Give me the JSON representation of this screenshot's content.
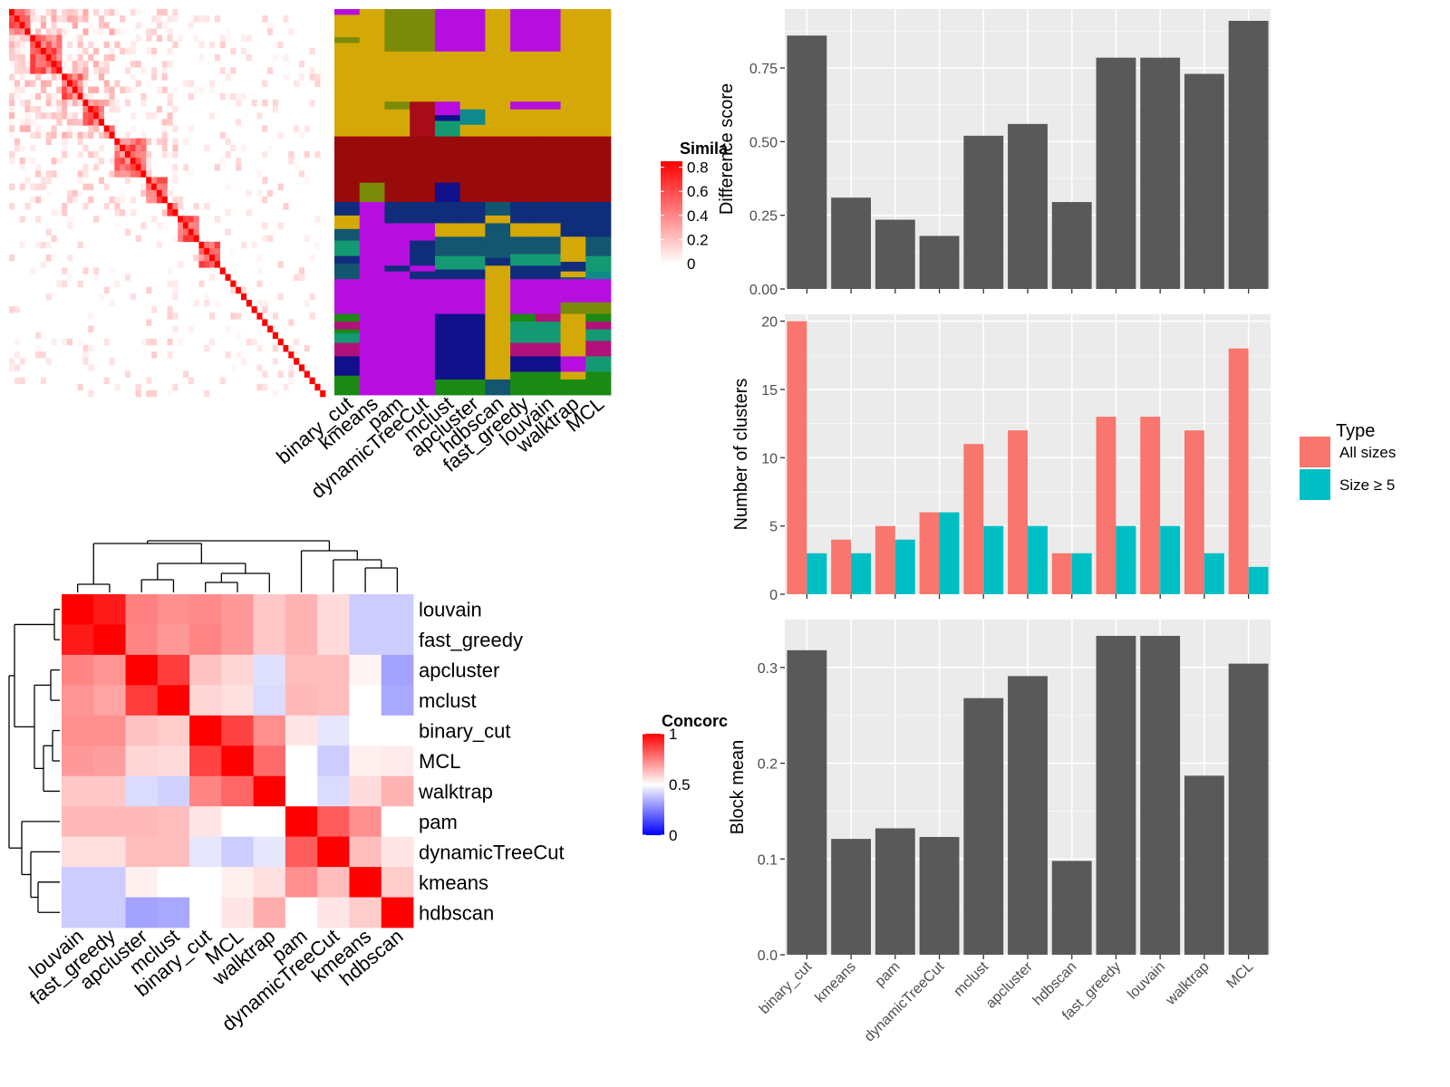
{
  "chart_data": [
    {
      "type": "heatmap",
      "panel": "similarity-heatmap",
      "legend": {
        "title": "Simila",
        "ticks": [
          "0.8",
          "0.6",
          "0.4",
          "0.2",
          "0"
        ],
        "range": [
          0,
          0.85
        ],
        "colors": [
          "#ffffff",
          "#ff0000"
        ]
      },
      "methods": [
        "binary_cut",
        "kmeans",
        "pam",
        "dynamicTreeCut",
        "mclust",
        "apcluster",
        "hdbscan",
        "fast_greedy",
        "louvain",
        "walktrap",
        "MCL"
      ],
      "palette": {
        "gold": "#d4a806",
        "darkred": "#990a0a",
        "red2": "#a80c18",
        "purple": "#b70ee0",
        "olive": "#7a8b0a",
        "navy": "#0f2d7a",
        "blue": "#10108a",
        "teal": "#13566f",
        "green": "#149a72",
        "cyan": "#0f8a8a",
        "ygreen": "#1a8a14",
        "magenta": "#b0127a",
        "white": "#ffffff"
      },
      "cluster_blocks": [
        {
          "col": 0,
          "segments": [
            [
              "purple",
              0,
              0.015
            ],
            [
              "gold",
              0.015,
              0.073
            ],
            [
              "olive",
              0.073,
              0.088
            ],
            [
              "gold",
              0.088,
              0.33
            ],
            [
              "darkred",
              0.33,
              0.5
            ],
            [
              "navy",
              0.5,
              0.535
            ],
            [
              "gold",
              0.535,
              0.57
            ],
            [
              "teal",
              0.57,
              0.6
            ],
            [
              "green",
              0.6,
              0.64
            ],
            [
              "navy",
              0.64,
              0.66
            ],
            [
              "teal",
              0.66,
              0.7
            ],
            [
              "purple",
              0.7,
              0.79
            ],
            [
              "ygreen",
              0.79,
              0.81
            ],
            [
              "magenta",
              0.81,
              0.83
            ],
            [
              "ygreen",
              0.83,
              0.84
            ],
            [
              "green",
              0.84,
              0.865
            ],
            [
              "magenta",
              0.865,
              0.9
            ],
            [
              "blue",
              0.9,
              0.95
            ],
            [
              "ygreen",
              0.95,
              1
            ]
          ]
        },
        {
          "col": 1,
          "segments": [
            [
              "gold",
              0,
              0.33
            ],
            [
              "darkred",
              0.33,
              0.45
            ],
            [
              "olive",
              0.45,
              0.5
            ],
            [
              "purple",
              0.5,
              1
            ]
          ]
        },
        {
          "col": 2,
          "segments": [
            [
              "olive",
              0,
              0.11
            ],
            [
              "gold",
              0.11,
              0.24
            ],
            [
              "olive",
              0.24,
              0.26
            ],
            [
              "gold",
              0.26,
              0.33
            ],
            [
              "darkred",
              0.33,
              0.5
            ],
            [
              "navy",
              0.5,
              0.555
            ],
            [
              "purple",
              0.555,
              0.665
            ],
            [
              "navy",
              0.665,
              0.68
            ],
            [
              "purple",
              0.68,
              1
            ]
          ]
        },
        {
          "col": 3,
          "segments": [
            [
              "olive",
              0,
              0.11
            ],
            [
              "gold",
              0.11,
              0.24
            ],
            [
              "red2",
              0.24,
              0.33
            ],
            [
              "darkred",
              0.33,
              0.5
            ],
            [
              "navy",
              0.5,
              0.555
            ],
            [
              "purple",
              0.555,
              0.6
            ],
            [
              "navy",
              0.6,
              0.665
            ],
            [
              "purple",
              0.665,
              0.68
            ],
            [
              "navy",
              0.68,
              0.7
            ],
            [
              "purple",
              0.7,
              1
            ]
          ]
        },
        {
          "col": 4,
          "segments": [
            [
              "purple",
              0,
              0.11
            ],
            [
              "gold",
              0.11,
              0.24
            ],
            [
              "purple",
              0.24,
              0.275
            ],
            [
              "blue",
              0.275,
              0.29
            ],
            [
              "green",
              0.29,
              0.33
            ],
            [
              "darkred",
              0.33,
              0.45
            ],
            [
              "blue",
              0.45,
              0.5
            ],
            [
              "navy",
              0.5,
              0.555
            ],
            [
              "gold",
              0.555,
              0.59
            ],
            [
              "teal",
              0.59,
              0.64
            ],
            [
              "green",
              0.64,
              0.675
            ],
            [
              "navy",
              0.675,
              0.7
            ],
            [
              "purple",
              0.7,
              0.79
            ],
            [
              "blue",
              0.79,
              0.96
            ],
            [
              "ygreen",
              0.96,
              1
            ]
          ]
        },
        {
          "col": 5,
          "segments": [
            [
              "purple",
              0,
              0.11
            ],
            [
              "gold",
              0.11,
              0.26
            ],
            [
              "cyan",
              0.26,
              0.3
            ],
            [
              "gold",
              0.3,
              0.33
            ],
            [
              "darkred",
              0.33,
              0.5
            ],
            [
              "navy",
              0.5,
              0.555
            ],
            [
              "gold",
              0.555,
              0.59
            ],
            [
              "teal",
              0.59,
              0.64
            ],
            [
              "green",
              0.64,
              0.675
            ],
            [
              "navy",
              0.675,
              0.7
            ],
            [
              "purple",
              0.7,
              0.79
            ],
            [
              "blue",
              0.79,
              0.96
            ],
            [
              "ygreen",
              0.96,
              1
            ]
          ]
        },
        {
          "col": 6,
          "segments": [
            [
              "gold",
              0,
              0.33
            ],
            [
              "darkred",
              0.33,
              0.5
            ],
            [
              "teal",
              0.5,
              0.535
            ],
            [
              "gold",
              0.535,
              0.555
            ],
            [
              "teal",
              0.555,
              0.645
            ],
            [
              "navy",
              0.645,
              0.665
            ],
            [
              "gold",
              0.665,
              0.96
            ],
            [
              "teal",
              0.96,
              1
            ]
          ]
        },
        {
          "col": 7,
          "segments": [
            [
              "purple",
              0,
              0.11
            ],
            [
              "gold",
              0.11,
              0.24
            ],
            [
              "purple",
              0.24,
              0.26
            ],
            [
              "gold",
              0.26,
              0.33
            ],
            [
              "darkred",
              0.33,
              0.5
            ],
            [
              "navy",
              0.5,
              0.555
            ],
            [
              "gold",
              0.555,
              0.59
            ],
            [
              "teal",
              0.59,
              0.635
            ],
            [
              "green",
              0.635,
              0.665
            ],
            [
              "navy",
              0.665,
              0.7
            ],
            [
              "purple",
              0.7,
              0.79
            ],
            [
              "ygreen",
              0.79,
              0.81
            ],
            [
              "green",
              0.81,
              0.865
            ],
            [
              "magenta",
              0.865,
              0.9
            ],
            [
              "blue",
              0.9,
              0.94
            ],
            [
              "ygreen",
              0.94,
              1
            ]
          ]
        },
        {
          "col": 8,
          "segments": [
            [
              "purple",
              0,
              0.11
            ],
            [
              "gold",
              0.11,
              0.24
            ],
            [
              "purple",
              0.24,
              0.26
            ],
            [
              "gold",
              0.26,
              0.33
            ],
            [
              "darkred",
              0.33,
              0.5
            ],
            [
              "navy",
              0.5,
              0.555
            ],
            [
              "gold",
              0.555,
              0.59
            ],
            [
              "teal",
              0.59,
              0.635
            ],
            [
              "green",
              0.635,
              0.665
            ],
            [
              "navy",
              0.665,
              0.7
            ],
            [
              "purple",
              0.7,
              0.79
            ],
            [
              "magenta",
              0.79,
              0.81
            ],
            [
              "green",
              0.81,
              0.865
            ],
            [
              "magenta",
              0.865,
              0.9
            ],
            [
              "blue",
              0.9,
              0.94
            ],
            [
              "ygreen",
              0.94,
              1
            ]
          ]
        },
        {
          "col": 9,
          "segments": [
            [
              "gold",
              0,
              0.33
            ],
            [
              "darkred",
              0.33,
              0.5
            ],
            [
              "navy",
              0.5,
              0.59
            ],
            [
              "gold",
              0.59,
              0.655
            ],
            [
              "navy",
              0.655,
              0.68
            ],
            [
              "gold",
              0.68,
              0.695
            ],
            [
              "teal",
              0.695,
              0.7
            ],
            [
              "purple",
              0.7,
              0.76
            ],
            [
              "olive",
              0.76,
              0.79
            ],
            [
              "gold",
              0.79,
              0.9
            ],
            [
              "purple",
              0.9,
              0.94
            ],
            [
              "gold",
              0.94,
              0.96
            ],
            [
              "ygreen",
              0.96,
              1
            ]
          ]
        },
        {
          "col": 10,
          "segments": [
            [
              "gold",
              0,
              0.33
            ],
            [
              "darkred",
              0.33,
              0.5
            ],
            [
              "navy",
              0.5,
              0.59
            ],
            [
              "teal",
              0.59,
              0.64
            ],
            [
              "green",
              0.64,
              0.68
            ],
            [
              "cyan",
              0.68,
              0.7
            ],
            [
              "purple",
              0.7,
              0.76
            ],
            [
              "olive",
              0.76,
              0.79
            ],
            [
              "ygreen",
              0.79,
              0.81
            ],
            [
              "magenta",
              0.81,
              0.83
            ],
            [
              "green",
              0.83,
              0.86
            ],
            [
              "magenta",
              0.86,
              0.9
            ],
            [
              "green",
              0.9,
              0.94
            ],
            [
              "ygreen",
              0.94,
              1
            ]
          ]
        }
      ]
    },
    {
      "type": "heatmap",
      "panel": "concordance-heatmap",
      "legend": {
        "title": "Concorc",
        "ticks": [
          "1",
          "0.5",
          "0"
        ],
        "range": [
          0,
          1
        ],
        "colors": [
          "#0000ff",
          "#ffffff",
          "#ff0000"
        ]
      },
      "rows": [
        "louvain",
        "fast_greedy",
        "apcluster",
        "mclust",
        "binary_cut",
        "MCL",
        "walktrap",
        "pam",
        "dynamicTreeCut",
        "kmeans",
        "hdbscan"
      ],
      "cols": [
        "louvain",
        "fast_greedy",
        "apcluster",
        "mclust",
        "binary_cut",
        "MCL",
        "walktrap",
        "pam",
        "dynamicTreeCut",
        "kmeans",
        "hdbscan"
      ],
      "values": [
        [
          1,
          0.95,
          0.75,
          0.72,
          0.73,
          0.7,
          0.61,
          0.65,
          0.57,
          0.4,
          0.4
        ],
        [
          0.95,
          1,
          0.74,
          0.7,
          0.74,
          0.7,
          0.61,
          0.65,
          0.57,
          0.4,
          0.4
        ],
        [
          0.74,
          0.71,
          1,
          0.88,
          0.62,
          0.58,
          0.44,
          0.63,
          0.63,
          0.52,
          0.32
        ],
        [
          0.71,
          0.68,
          0.88,
          1,
          0.58,
          0.56,
          0.43,
          0.64,
          0.63,
          0.5,
          0.33
        ],
        [
          0.72,
          0.72,
          0.62,
          0.6,
          1,
          0.87,
          0.72,
          0.55,
          0.45,
          0.5,
          0.5
        ],
        [
          0.7,
          0.69,
          0.58,
          0.57,
          0.87,
          1,
          0.79,
          0.5,
          0.4,
          0.53,
          0.54
        ],
        [
          0.61,
          0.61,
          0.43,
          0.41,
          0.74,
          0.8,
          1,
          0.5,
          0.43,
          0.57,
          0.65
        ],
        [
          0.64,
          0.64,
          0.64,
          0.63,
          0.55,
          0.5,
          0.5,
          1,
          0.82,
          0.72,
          0.5
        ],
        [
          0.56,
          0.56,
          0.63,
          0.63,
          0.45,
          0.4,
          0.45,
          0.82,
          1,
          0.63,
          0.55
        ],
        [
          0.4,
          0.4,
          0.53,
          0.5,
          0.5,
          0.53,
          0.56,
          0.72,
          0.63,
          1,
          0.6
        ],
        [
          0.4,
          0.4,
          0.32,
          0.33,
          0.5,
          0.55,
          0.66,
          0.5,
          0.55,
          0.6,
          1
        ]
      ]
    },
    {
      "type": "bar",
      "panel": "difference-score",
      "categories": [
        "binary_cut",
        "kmeans",
        "pam",
        "dynamicTreeCut",
        "mclust",
        "apcluster",
        "hdbscan",
        "fast_greedy",
        "louvain",
        "walktrap",
        "MCL"
      ],
      "values": [
        0.86,
        0.31,
        0.235,
        0.18,
        0.52,
        0.56,
        0.295,
        0.785,
        0.785,
        0.73,
        0.91
      ],
      "ylabel": "Difference score",
      "ylim": [
        0,
        0.95
      ],
      "yticks": [
        "0.00",
        "0.25",
        "0.50",
        "0.75"
      ],
      "bar_color": "#595959",
      "grid": true
    },
    {
      "type": "bar",
      "panel": "number-of-clusters",
      "categories": [
        "binary_cut",
        "kmeans",
        "pam",
        "dynamicTreeCut",
        "mclust",
        "apcluster",
        "hdbscan",
        "fast_greedy",
        "louvain",
        "walktrap",
        "MCL"
      ],
      "series": [
        {
          "name": "All sizes",
          "color": "#f8766d",
          "values": [
            20,
            4,
            5,
            6,
            11,
            12,
            3,
            13,
            13,
            12,
            18
          ]
        },
        {
          "name": "Size ≥ 5",
          "color": "#00bfc4",
          "values": [
            3,
            3,
            4,
            6,
            5,
            5,
            3,
            5,
            5,
            3,
            2
          ]
        }
      ],
      "ylabel": "Number of clusters",
      "ylim": [
        0,
        20.5
      ],
      "yticks": [
        "0",
        "5",
        "10",
        "15",
        "20"
      ],
      "legend_title": "Type",
      "legend_position": "right",
      "grid": true
    },
    {
      "type": "bar",
      "panel": "block-mean",
      "categories": [
        "binary_cut",
        "kmeans",
        "pam",
        "dynamicTreeCut",
        "mclust",
        "apcluster",
        "hdbscan",
        "fast_greedy",
        "louvain",
        "walktrap",
        "MCL"
      ],
      "values": [
        0.318,
        0.121,
        0.132,
        0.123,
        0.268,
        0.291,
        0.098,
        0.333,
        0.333,
        0.187,
        0.304
      ],
      "ylabel": "Block mean",
      "ylim": [
        0,
        0.35
      ],
      "yticks": [
        "0.0",
        "0.1",
        "0.2",
        "0.3"
      ],
      "bar_color": "#595959",
      "grid": true
    }
  ]
}
